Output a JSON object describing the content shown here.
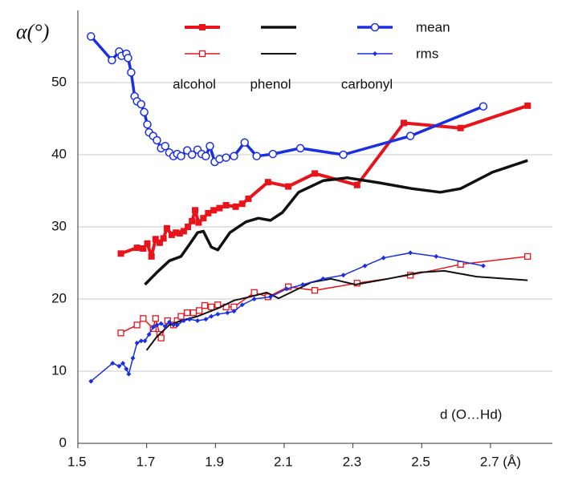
{
  "chart_data": {
    "type": "line",
    "y_label": "α(°)",
    "annotation": "d (O…Hd)",
    "xlim": [
      1.5,
      2.88
    ],
    "ylim": [
      0,
      60
    ],
    "xticks": [
      1.5,
      1.7,
      1.9,
      2.1,
      2.3,
      2.5,
      {
        "value": 2.7,
        "label": "2.7 (Å)"
      }
    ],
    "yticks": [
      0,
      10,
      20,
      30,
      40,
      50
    ],
    "grid": true,
    "series": [
      {
        "name": "alcohol",
        "stat": "mean",
        "color": "#e8141c",
        "width": 4,
        "marker": "square-filled",
        "x": [
          1.625,
          1.672,
          1.69,
          1.702,
          1.714,
          1.726,
          1.738,
          1.749,
          1.759,
          1.773,
          1.785,
          1.796,
          1.808,
          1.82,
          1.832,
          1.841,
          1.851,
          1.865,
          1.879,
          1.895,
          1.912,
          1.931,
          1.959,
          1.978,
          1.996,
          2.053,
          2.112,
          2.189,
          2.312,
          2.448,
          2.613,
          2.808
        ],
        "values": [
          26.3,
          27.1,
          27.0,
          27.7,
          25.9,
          28.3,
          27.8,
          28.4,
          29.8,
          28.9,
          29.2,
          29.1,
          29.4,
          30.0,
          30.8,
          32.3,
          30.6,
          31.2,
          31.9,
          32.3,
          32.6,
          33.0,
          32.8,
          33.2,
          33.9,
          36.2,
          35.6,
          37.4,
          35.8,
          44.4,
          43.7,
          46.8
        ]
      },
      {
        "name": "alcohol",
        "stat": "rms",
        "color": "#e8141c",
        "width": 1.5,
        "marker": "square-open",
        "x": [
          1.625,
          1.672,
          1.69,
          1.719,
          1.726,
          1.738,
          1.742,
          1.761,
          1.778,
          1.789,
          1.8,
          1.818,
          1.836,
          1.853,
          1.869,
          1.888,
          1.907,
          1.931,
          1.954,
          2.013,
          2.053,
          2.112,
          2.189,
          2.312,
          2.467,
          2.613,
          2.808
        ],
        "values": [
          15.3,
          16.4,
          17.3,
          15.9,
          17.3,
          15.1,
          14.6,
          17.0,
          16.4,
          17.0,
          17.6,
          18.1,
          18.1,
          18.4,
          19.1,
          18.9,
          19.2,
          18.9,
          18.9,
          20.9,
          20.3,
          21.7,
          21.2,
          22.2,
          23.3,
          24.8,
          25.9
        ]
      },
      {
        "name": "phenol",
        "stat": "mean",
        "color": "#111111",
        "width": 3.5,
        "marker": "none",
        "x": [
          1.695,
          1.73,
          1.766,
          1.8,
          1.825,
          1.848,
          1.865,
          1.888,
          1.907,
          1.942,
          1.989,
          2.025,
          2.06,
          2.095,
          2.142,
          2.213,
          2.284,
          2.378,
          2.472,
          2.554,
          2.613,
          2.707,
          2.808
        ],
        "values": [
          22.0,
          23.7,
          25.3,
          25.9,
          27.6,
          29.2,
          29.4,
          27.2,
          26.8,
          29.2,
          30.7,
          31.2,
          30.9,
          32.0,
          34.8,
          36.4,
          36.8,
          36.1,
          35.3,
          34.8,
          35.3,
          37.6,
          39.2
        ]
      },
      {
        "name": "phenol",
        "stat": "rms",
        "color": "#111111",
        "width": 2,
        "marker": "none",
        "x": [
          1.7,
          1.73,
          1.766,
          1.8,
          1.848,
          1.907,
          1.954,
          2.0,
          2.049,
          2.084,
          2.119,
          2.178,
          2.236,
          2.307,
          2.402,
          2.496,
          2.566,
          2.66,
          2.808
        ],
        "values": [
          12.9,
          14.8,
          16.4,
          17.0,
          17.6,
          18.7,
          19.8,
          20.3,
          20.9,
          20.1,
          20.9,
          22.3,
          22.8,
          22.0,
          22.8,
          23.7,
          23.9,
          23.1,
          22.6
        ]
      },
      {
        "name": "carbonyl",
        "stat": "mean",
        "color": "#1a2fe0",
        "width": 3.5,
        "marker": "circle-open",
        "x": [
          1.538,
          1.599,
          1.62,
          1.627,
          1.641,
          1.646,
          1.655,
          1.665,
          1.672,
          1.684,
          1.693,
          1.702,
          1.707,
          1.719,
          1.73,
          1.742,
          1.754,
          1.766,
          1.778,
          1.789,
          1.8,
          1.818,
          1.832,
          1.848,
          1.86,
          1.872,
          1.884,
          1.898,
          1.912,
          1.931,
          1.954,
          1.985,
          2.02,
          2.067,
          2.147,
          2.272,
          2.467,
          2.679
        ],
        "values": [
          56.4,
          53.1,
          54.3,
          53.7,
          54.0,
          53.4,
          51.4,
          48.1,
          47.4,
          47.0,
          45.9,
          44.2,
          43.1,
          42.6,
          42.0,
          40.9,
          41.2,
          40.3,
          39.8,
          40.1,
          39.8,
          40.6,
          40.0,
          40.7,
          40.1,
          39.8,
          41.2,
          39.0,
          39.4,
          39.6,
          39.8,
          41.7,
          39.8,
          40.1,
          40.9,
          40.0,
          42.6,
          46.7
        ]
      },
      {
        "name": "carbonyl",
        "stat": "rms",
        "color": "#1a2fe0",
        "width": 1.5,
        "marker": "diamond",
        "x": [
          1.538,
          1.601,
          1.62,
          1.631,
          1.641,
          1.648,
          1.66,
          1.672,
          1.684,
          1.695,
          1.707,
          1.719,
          1.73,
          1.742,
          1.754,
          1.766,
          1.778,
          1.789,
          1.808,
          1.825,
          1.848,
          1.872,
          1.888,
          1.907,
          1.935,
          1.954,
          1.978,
          2.013,
          2.06,
          2.107,
          2.154,
          2.213,
          2.272,
          2.335,
          2.389,
          2.467,
          2.542,
          2.679
        ],
        "values": [
          8.6,
          11.1,
          10.7,
          11.1,
          10.3,
          9.6,
          11.8,
          13.9,
          14.2,
          14.2,
          15.1,
          16.1,
          16.4,
          16.6,
          16.2,
          16.8,
          16.4,
          16.4,
          17.0,
          17.2,
          17.0,
          17.2,
          17.6,
          17.9,
          18.1,
          18.3,
          19.2,
          20.0,
          20.3,
          21.4,
          22.0,
          22.8,
          23.3,
          24.6,
          25.7,
          26.4,
          25.9,
          24.6
        ]
      }
    ]
  }
}
